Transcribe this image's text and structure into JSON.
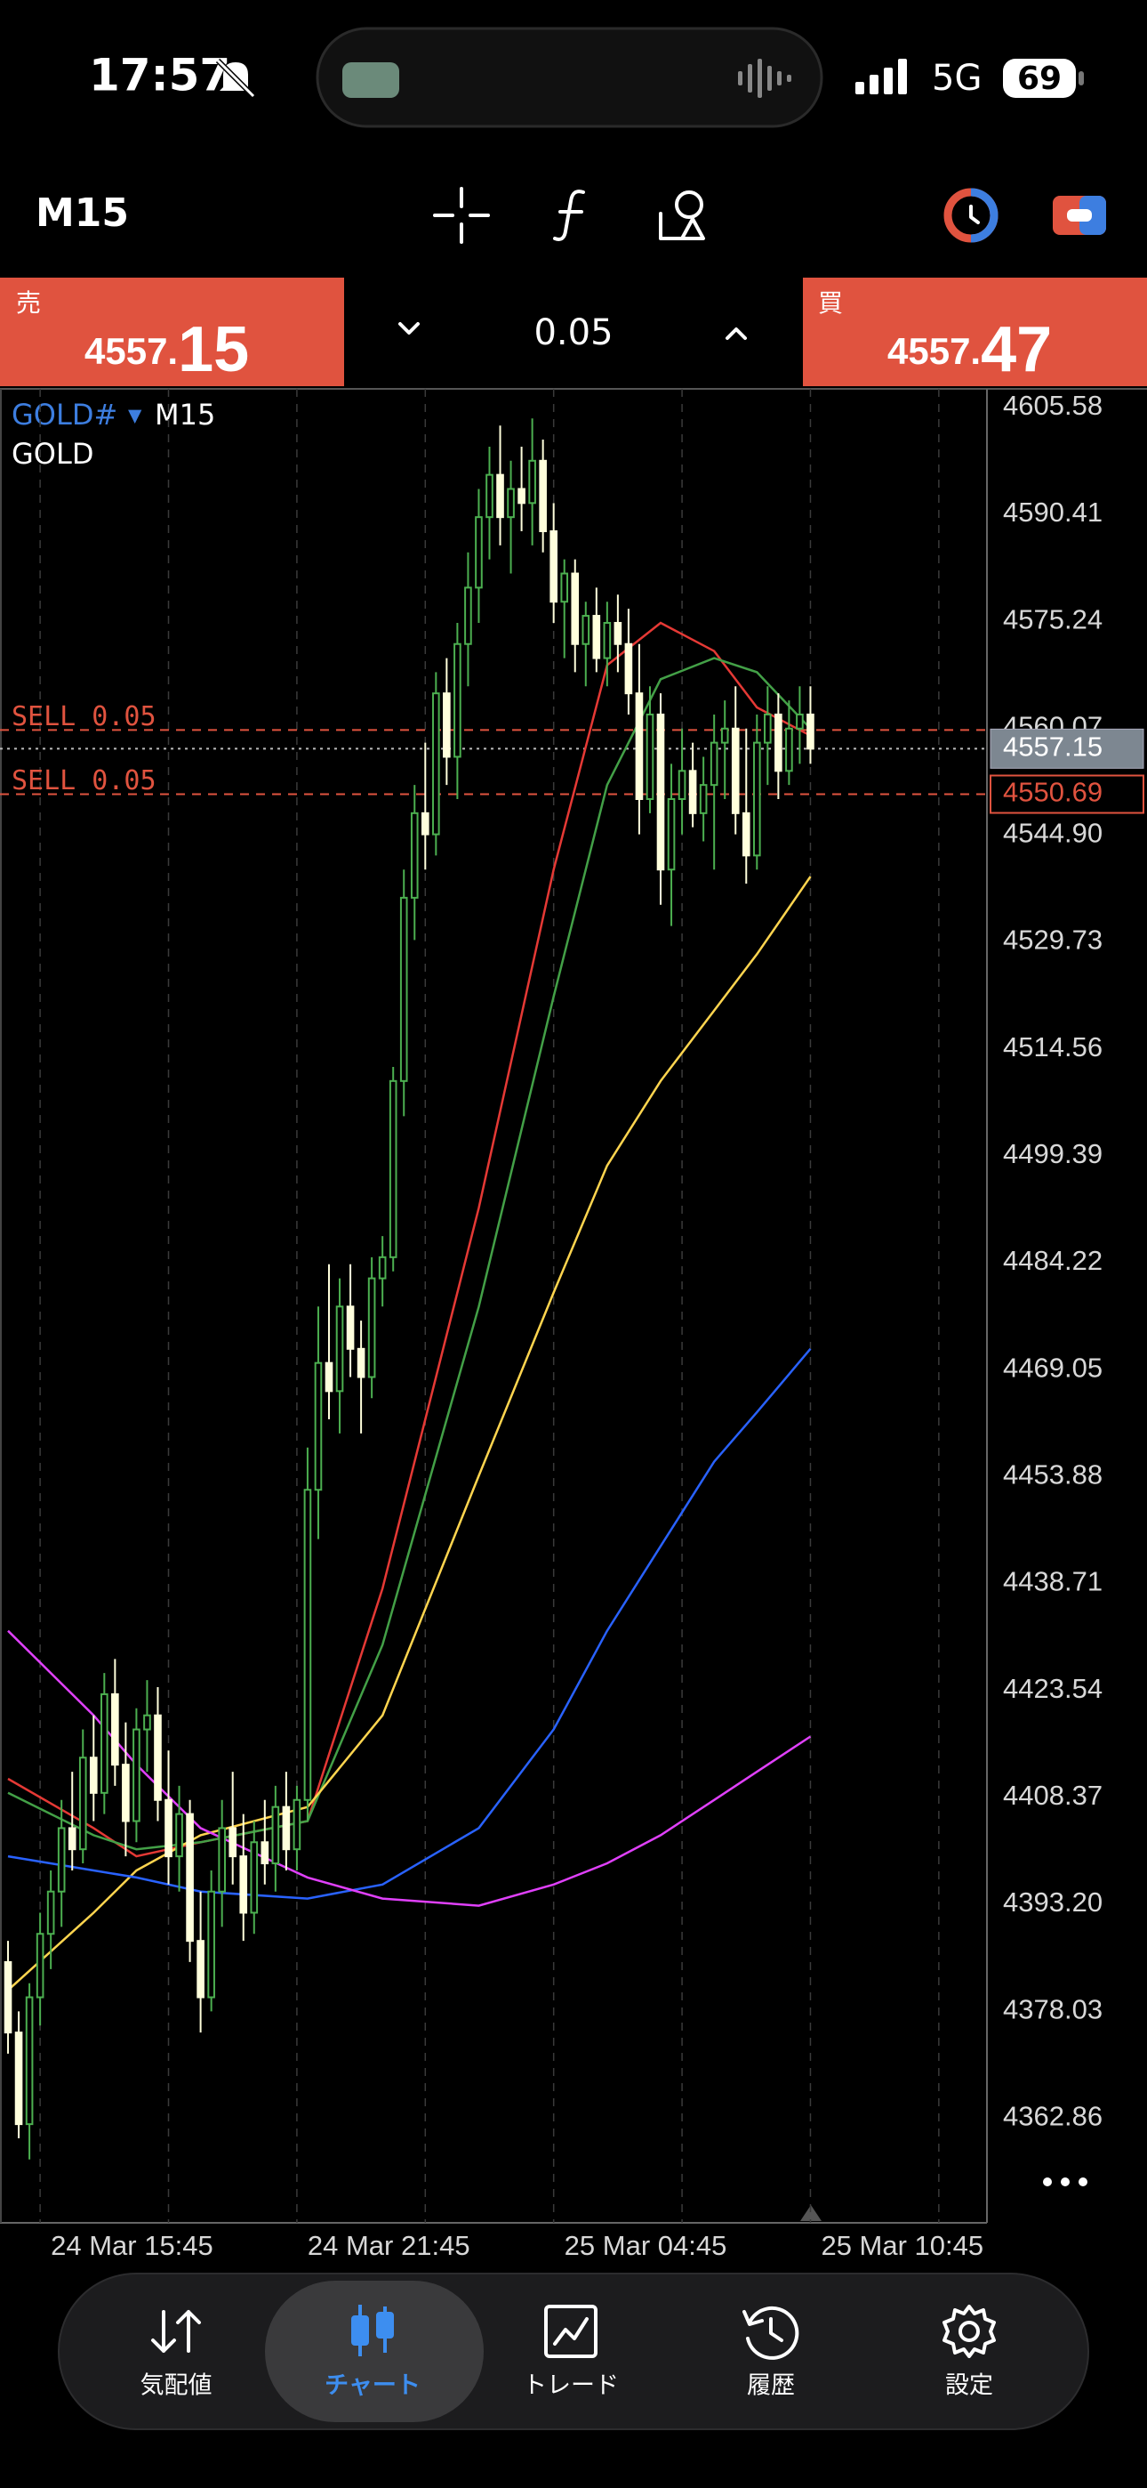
{
  "status_bar": {
    "time": "17:57",
    "network": "5G",
    "battery": "69"
  },
  "toolbar": {
    "timeframe": "M15"
  },
  "quote": {
    "sell": {
      "label": "売",
      "price_main": "4557.",
      "price_pips": "15"
    },
    "volume": "0.05",
    "buy": {
      "label": "買",
      "price_main": "4557.",
      "price_pips": "47"
    }
  },
  "chart_data": {
    "type": "candlestick",
    "symbol": "GOLD#",
    "symbol_marker": "▼",
    "timeframe": "M15",
    "description": "GOLD",
    "open": [
      4385,
      4375,
      4362,
      4380,
      4389,
      4395,
      4404,
      4401,
      4414,
      4409,
      4423,
      4413,
      4405,
      4418,
      4420,
      4408,
      4400,
      4406,
      4388,
      4380,
      4395,
      4404,
      4400,
      4392,
      4402,
      4399,
      4407,
      4401,
      4408,
      4452,
      4470,
      4466,
      4478,
      4472,
      4468,
      4482,
      4485,
      4510,
      4536,
      4548,
      4545,
      4565,
      4556,
      4572,
      4580,
      4590,
      4596,
      4590,
      4594,
      4592,
      4598,
      4588,
      4578,
      4582,
      4572,
      4576,
      4570,
      4575,
      4572,
      4565,
      4550,
      4562,
      4540,
      4550,
      4554,
      4548,
      4552,
      4558,
      4560,
      4548,
      4542,
      4558,
      4562,
      4554,
      4560,
      4562
    ],
    "high": [
      4388,
      4378,
      4382,
      4392,
      4398,
      4408,
      4412,
      4418,
      4420,
      4426,
      4428,
      4419,
      4421,
      4425,
      4424,
      4415,
      4410,
      4408,
      4395,
      4398,
      4408,
      4412,
      4406,
      4405,
      4408,
      4410,
      4412,
      4410,
      4458,
      4478,
      4484,
      4482,
      4484,
      4476,
      4485,
      4488,
      4512,
      4540,
      4552,
      4558,
      4568,
      4570,
      4575,
      4585,
      4594,
      4600,
      4603,
      4598,
      4600,
      4604,
      4601,
      4592,
      4584,
      4584,
      4578,
      4580,
      4578,
      4579,
      4577,
      4572,
      4566,
      4565,
      4555,
      4560,
      4558,
      4556,
      4562,
      4564,
      4566,
      4560,
      4562,
      4566,
      4565,
      4564,
      4566,
      4566
    ],
    "low": [
      4372,
      4360,
      4357,
      4376,
      4384,
      4390,
      4398,
      4399,
      4405,
      4406,
      4410,
      4400,
      4402,
      4412,
      4405,
      4396,
      4395,
      4385,
      4375,
      4378,
      4390,
      4396,
      4388,
      4389,
      4396,
      4395,
      4398,
      4398,
      4405,
      4445,
      4462,
      4460,
      4468,
      4460,
      4465,
      4478,
      4483,
      4505,
      4530,
      4540,
      4542,
      4552,
      4550,
      4566,
      4575,
      4584,
      4586,
      4582,
      4588,
      4586,
      4585,
      4575,
      4570,
      4568,
      4566,
      4568,
      4566,
      4568,
      4562,
      4545,
      4548,
      4535,
      4532,
      4545,
      4546,
      4544,
      4540,
      4550,
      4545,
      4538,
      4540,
      4552,
      4550,
      4552,
      4555,
      4555
    ],
    "close": [
      4375,
      4362,
      4380,
      4389,
      4395,
      4404,
      4401,
      4414,
      4409,
      4423,
      4413,
      4405,
      4418,
      4420,
      4408,
      4400,
      4406,
      4388,
      4380,
      4395,
      4404,
      4400,
      4392,
      4402,
      4399,
      4407,
      4401,
      4408,
      4452,
      4470,
      4466,
      4478,
      4472,
      4468,
      4482,
      4485,
      4510,
      4536,
      4548,
      4545,
      4565,
      4556,
      4572,
      4580,
      4590,
      4596,
      4590,
      4594,
      4592,
      4598,
      4588,
      4578,
      4582,
      4572,
      4576,
      4570,
      4575,
      4572,
      4565,
      4550,
      4562,
      4540,
      4550,
      4554,
      4548,
      4552,
      4558,
      4560,
      4548,
      4542,
      4558,
      4562,
      4554,
      4560,
      4562,
      4557.15
    ],
    "bull_color": "#4caf50",
    "bear_color": "#ffffdc",
    "indicators": [
      {
        "color": "#e53935",
        "x": [
          0,
          8,
          12,
          18,
          28,
          35,
          44,
          51,
          56,
          61,
          66,
          70,
          75
        ],
        "values": [
          4411,
          4404,
          4400,
          4402,
          4405,
          4438,
          4492,
          4540,
          4569,
          4575,
          4571,
          4563,
          4559
        ]
      },
      {
        "color": "#43a047",
        "x": [
          0,
          8,
          12,
          18,
          28,
          35,
          44,
          51,
          56,
          61,
          66,
          70,
          75
        ],
        "values": [
          4409,
          4403,
          4401,
          4402,
          4405,
          4430,
          4478,
          4522,
          4552,
          4567,
          4570,
          4568,
          4560
        ]
      },
      {
        "color": "#ffd54f",
        "x": [
          0,
          8,
          12,
          18,
          28,
          35,
          44,
          51,
          56,
          61,
          66,
          70,
          75
        ],
        "values": [
          4381,
          4392,
          4398,
          4403,
          4407,
          4420,
          4454,
          4480,
          4498,
          4510,
          4520,
          4528,
          4539
        ]
      },
      {
        "color": "#2962ff",
        "x": [
          0,
          8,
          12,
          18,
          28,
          35,
          44,
          51,
          56,
          61,
          66,
          70,
          75
        ],
        "values": [
          4400,
          4398,
          4397,
          4395,
          4394,
          4396,
          4404,
          4418,
          4432,
          4444,
          4456,
          4463,
          4472
        ]
      },
      {
        "color": "#e040fb",
        "x": [
          0,
          8,
          12,
          18,
          28,
          35,
          44,
          51,
          56,
          61,
          66,
          70,
          75
        ],
        "values": [
          4432,
          4420,
          4413,
          4404,
          4397,
          4394,
          4393,
          4396,
          4399,
          4403,
          4408,
          4412,
          4417
        ]
      }
    ],
    "ylim": [
      4348,
      4608.2
    ],
    "yticks": [
      4605.58,
      4590.41,
      4575.24,
      4560.07,
      4544.9,
      4529.73,
      4514.56,
      4499.39,
      4484.22,
      4469.05,
      4453.88,
      4438.71,
      4423.54,
      4408.37,
      4393.2,
      4378.03,
      4362.86
    ],
    "ytick_labels": [
      "4605.58",
      "4590.41",
      "4575.24",
      "4560.07",
      "4544.90",
      "4529.73",
      "4514.56",
      "4499.39",
      "4484.22",
      "4469.05",
      "4453.88",
      "4438.71",
      "4423.54",
      "4408.37",
      "4393.20",
      "4378.03",
      "4362.86"
    ],
    "xlim": [
      -0.75,
      91.5
    ],
    "xticks": [
      {
        "value": 3,
        "label": "24 Mar 15:45"
      },
      {
        "value": 15,
        "label": null
      },
      {
        "value": 27,
        "label": "24 Mar 21:45"
      },
      {
        "value": 39,
        "label": null
      },
      {
        "value": 51,
        "label": "25 Mar 04:45"
      },
      {
        "value": 63,
        "label": null
      },
      {
        "value": 75,
        "label": "25 Mar 10:45"
      },
      {
        "value": 87,
        "label": null
      }
    ],
    "grid": true,
    "orders": [
      {
        "label": "SELL 0.05",
        "price": 4559.8,
        "color": "#e0533f"
      },
      {
        "label": "SELL 0.05",
        "price": 4550.69,
        "price_label": "4550.69",
        "color": "#e0533f"
      }
    ],
    "bid": {
      "price": 4557.15,
      "label": "4557.15"
    }
  },
  "nav": [
    {
      "label": "気配値",
      "active": false
    },
    {
      "label": "チャート",
      "active": true
    },
    {
      "label": "トレード",
      "active": false
    },
    {
      "label": "履歴",
      "active": false
    },
    {
      "label": "設定",
      "active": false
    }
  ]
}
